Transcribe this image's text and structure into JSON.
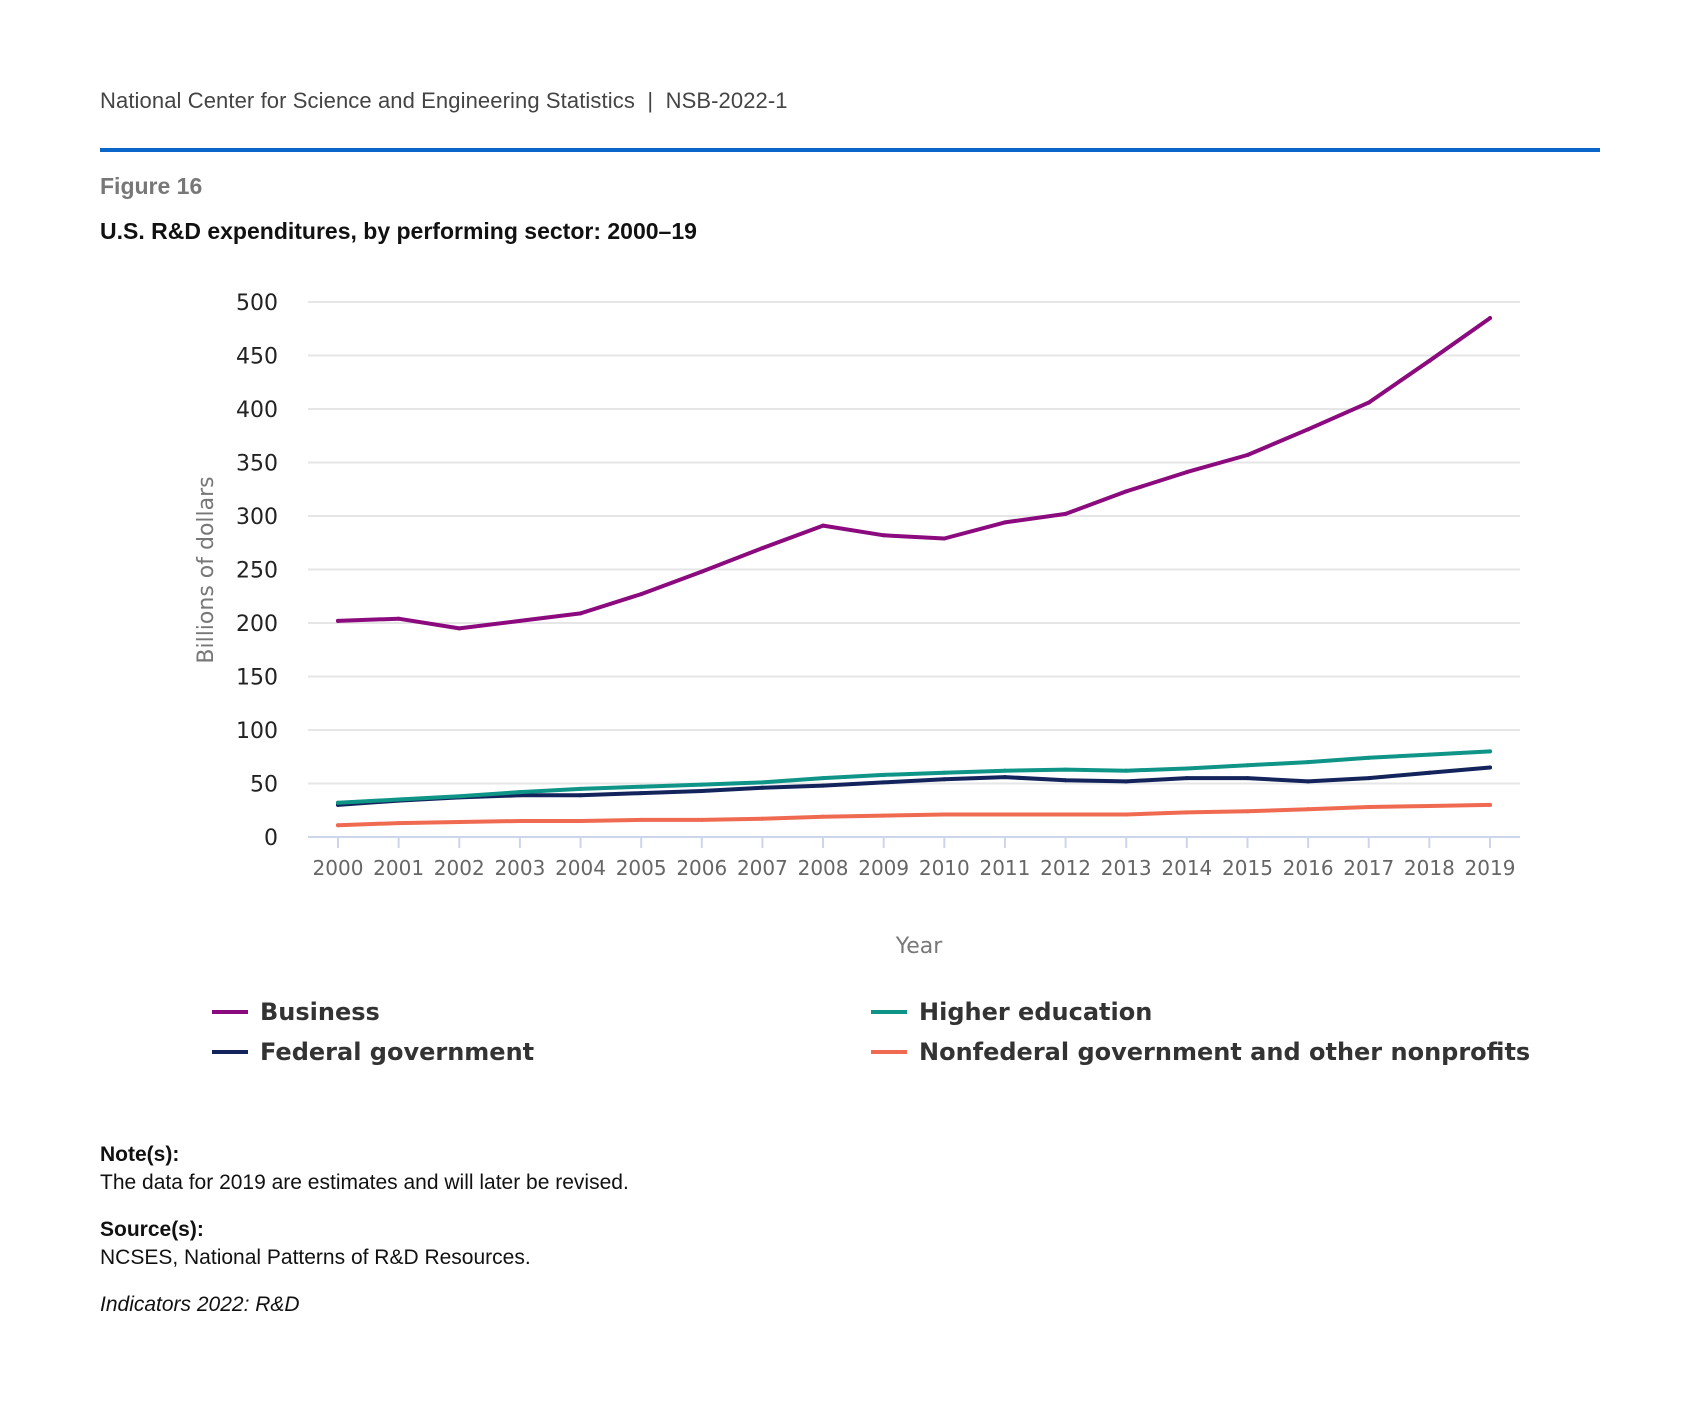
{
  "header": {
    "org_line": "National Center for Science and Engineering Statistics  |  NSB-2022-1",
    "rule_color": "#0a66c8"
  },
  "figure": {
    "label": "Figure 16",
    "title": "U.S. R&D expenditures, by performing sector: 2000–19"
  },
  "chart_data": {
    "type": "line",
    "title": "U.S. R&D expenditures, by performing sector: 2000–19",
    "xlabel": "Year",
    "ylabel": "Billions of dollars",
    "ylim": [
      0,
      500
    ],
    "yticks": [
      0,
      50,
      100,
      150,
      200,
      250,
      300,
      350,
      400,
      450,
      500
    ],
    "grid": true,
    "legend_position": "bottom",
    "x": [
      "2000",
      "2001",
      "2002",
      "2003",
      "2004",
      "2005",
      "2006",
      "2007",
      "2008",
      "2009",
      "2010",
      "2011",
      "2012",
      "2013",
      "2014",
      "2015",
      "2016",
      "2017",
      "2018",
      "2019"
    ],
    "series": [
      {
        "name": "Business",
        "color": "#8b0a7e",
        "values": [
          202,
          204,
          195,
          202,
          209,
          227,
          248,
          270,
          291,
          282,
          279,
          294,
          302,
          323,
          341,
          357,
          381,
          406,
          445,
          485
        ]
      },
      {
        "name": "Higher education",
        "color": "#0f9488",
        "values": [
          32,
          35,
          38,
          42,
          45,
          47,
          49,
          51,
          55,
          58,
          60,
          62,
          63,
          62,
          64,
          67,
          70,
          74,
          77,
          80
        ]
      },
      {
        "name": "Federal government",
        "color": "#13235b",
        "values": [
          30,
          34,
          37,
          39,
          39,
          41,
          43,
          46,
          48,
          51,
          54,
          56,
          53,
          52,
          55,
          55,
          52,
          55,
          60,
          65
        ]
      },
      {
        "name": "Nonfederal government and other nonprofits",
        "color": "#ef6a51",
        "values": [
          11,
          13,
          14,
          15,
          15,
          16,
          16,
          17,
          19,
          20,
          21,
          21,
          21,
          21,
          23,
          24,
          26,
          28,
          29,
          30
        ]
      }
    ]
  },
  "legend": {
    "items": [
      {
        "label": "Business",
        "color": "#8b0a7e"
      },
      {
        "label": "Higher education",
        "color": "#0f9488"
      },
      {
        "label": "Federal government",
        "color": "#13235b"
      },
      {
        "label": "Nonfederal government and other nonprofits",
        "color": "#ef6a51"
      }
    ]
  },
  "footer": {
    "note_label": "Note(s):",
    "note_text": "The data for 2019 are estimates and will later be revised.",
    "source_label": "Source(s):",
    "source_text": "NCSES, National Patterns of R&D Resources.",
    "citation": "Indicators 2022: R&D"
  }
}
